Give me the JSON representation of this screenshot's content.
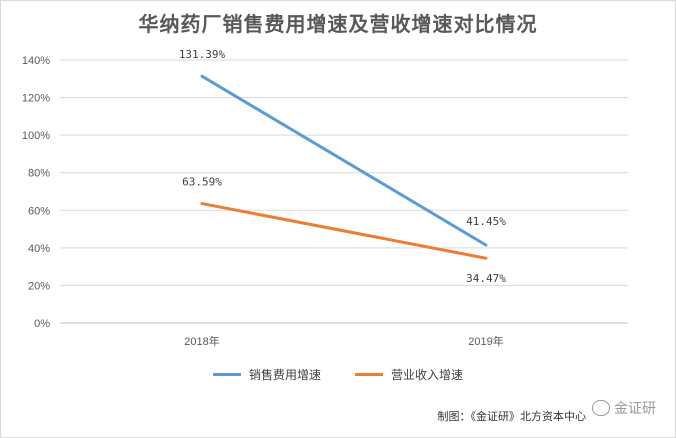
{
  "chart_data": {
    "type": "line",
    "title": "华纳药厂销售费用增速及营收增速对比情况",
    "categories": [
      "2018年",
      "2019年"
    ],
    "yticks": [
      "0%",
      "20%",
      "40%",
      "60%",
      "80%",
      "100%",
      "120%",
      "140%"
    ],
    "ylim": [
      0,
      140
    ],
    "grid": true,
    "legend_position": "bottom",
    "series": [
      {
        "name": "销售费用增速",
        "values": [
          131.39,
          41.45
        ],
        "labels": [
          "131.39%",
          "41.45%"
        ],
        "color": "#5b9bd5"
      },
      {
        "name": "营业收入增速",
        "values": [
          63.59,
          34.47
        ],
        "labels": [
          "63.59%",
          "34.47%"
        ],
        "color": "#ed7d31"
      }
    ]
  },
  "source": "制图：《金证研》北方资本中心",
  "watermark": "金证研"
}
